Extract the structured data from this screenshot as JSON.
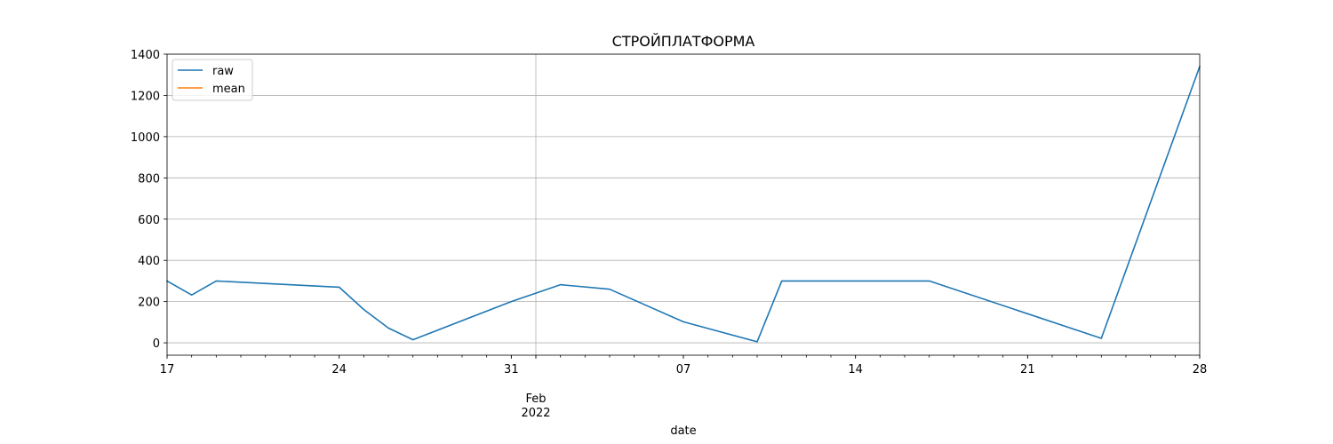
{
  "chart_data": {
    "type": "line",
    "title": "СТРОЙПЛАТФОРМА",
    "xlabel": "date",
    "ylabel": "",
    "x_range": [
      "2022-01-17",
      "2022-02-28"
    ],
    "ylim": [
      -60,
      1400
    ],
    "grid": true,
    "legend_position": "top-left",
    "x_major_ticks": [
      {
        "date": "2022-01-17",
        "label": "17",
        "sublabel": ""
      },
      {
        "date": "2022-01-24",
        "label": "24",
        "sublabel": ""
      },
      {
        "date": "2022-01-31",
        "label": "31",
        "sublabel": ""
      },
      {
        "date": "2022-02-01",
        "label": "Feb",
        "sublabel": "2022"
      },
      {
        "date": "2022-02-07",
        "label": "07",
        "sublabel": ""
      },
      {
        "date": "2022-02-14",
        "label": "14",
        "sublabel": ""
      },
      {
        "date": "2022-02-21",
        "label": "21",
        "sublabel": ""
      },
      {
        "date": "2022-02-28",
        "label": "28",
        "sublabel": ""
      }
    ],
    "y_ticks": [
      0,
      200,
      400,
      600,
      800,
      1000,
      1200,
      1400
    ],
    "series": [
      {
        "name": "raw",
        "color": "#1f77b4",
        "points": [
          {
            "x": "2022-01-17",
            "y": 300
          },
          {
            "x": "2022-01-18",
            "y": 232
          },
          {
            "x": "2022-01-19",
            "y": 300
          },
          {
            "x": "2022-01-24",
            "y": 270
          },
          {
            "x": "2022-01-25",
            "y": 162
          },
          {
            "x": "2022-01-26",
            "y": 72
          },
          {
            "x": "2022-01-27",
            "y": 15
          },
          {
            "x": "2022-01-31",
            "y": 200
          },
          {
            "x": "2022-02-02",
            "y": 282
          },
          {
            "x": "2022-02-04",
            "y": 260
          },
          {
            "x": "2022-02-07",
            "y": 102
          },
          {
            "x": "2022-02-10",
            "y": 5
          },
          {
            "x": "2022-02-11",
            "y": 300
          },
          {
            "x": "2022-02-17",
            "y": 300
          },
          {
            "x": "2022-02-24",
            "y": 22
          },
          {
            "x": "2022-02-28",
            "y": 1340
          }
        ]
      },
      {
        "name": "mean",
        "color": "#ff7f0e",
        "points": []
      }
    ]
  }
}
